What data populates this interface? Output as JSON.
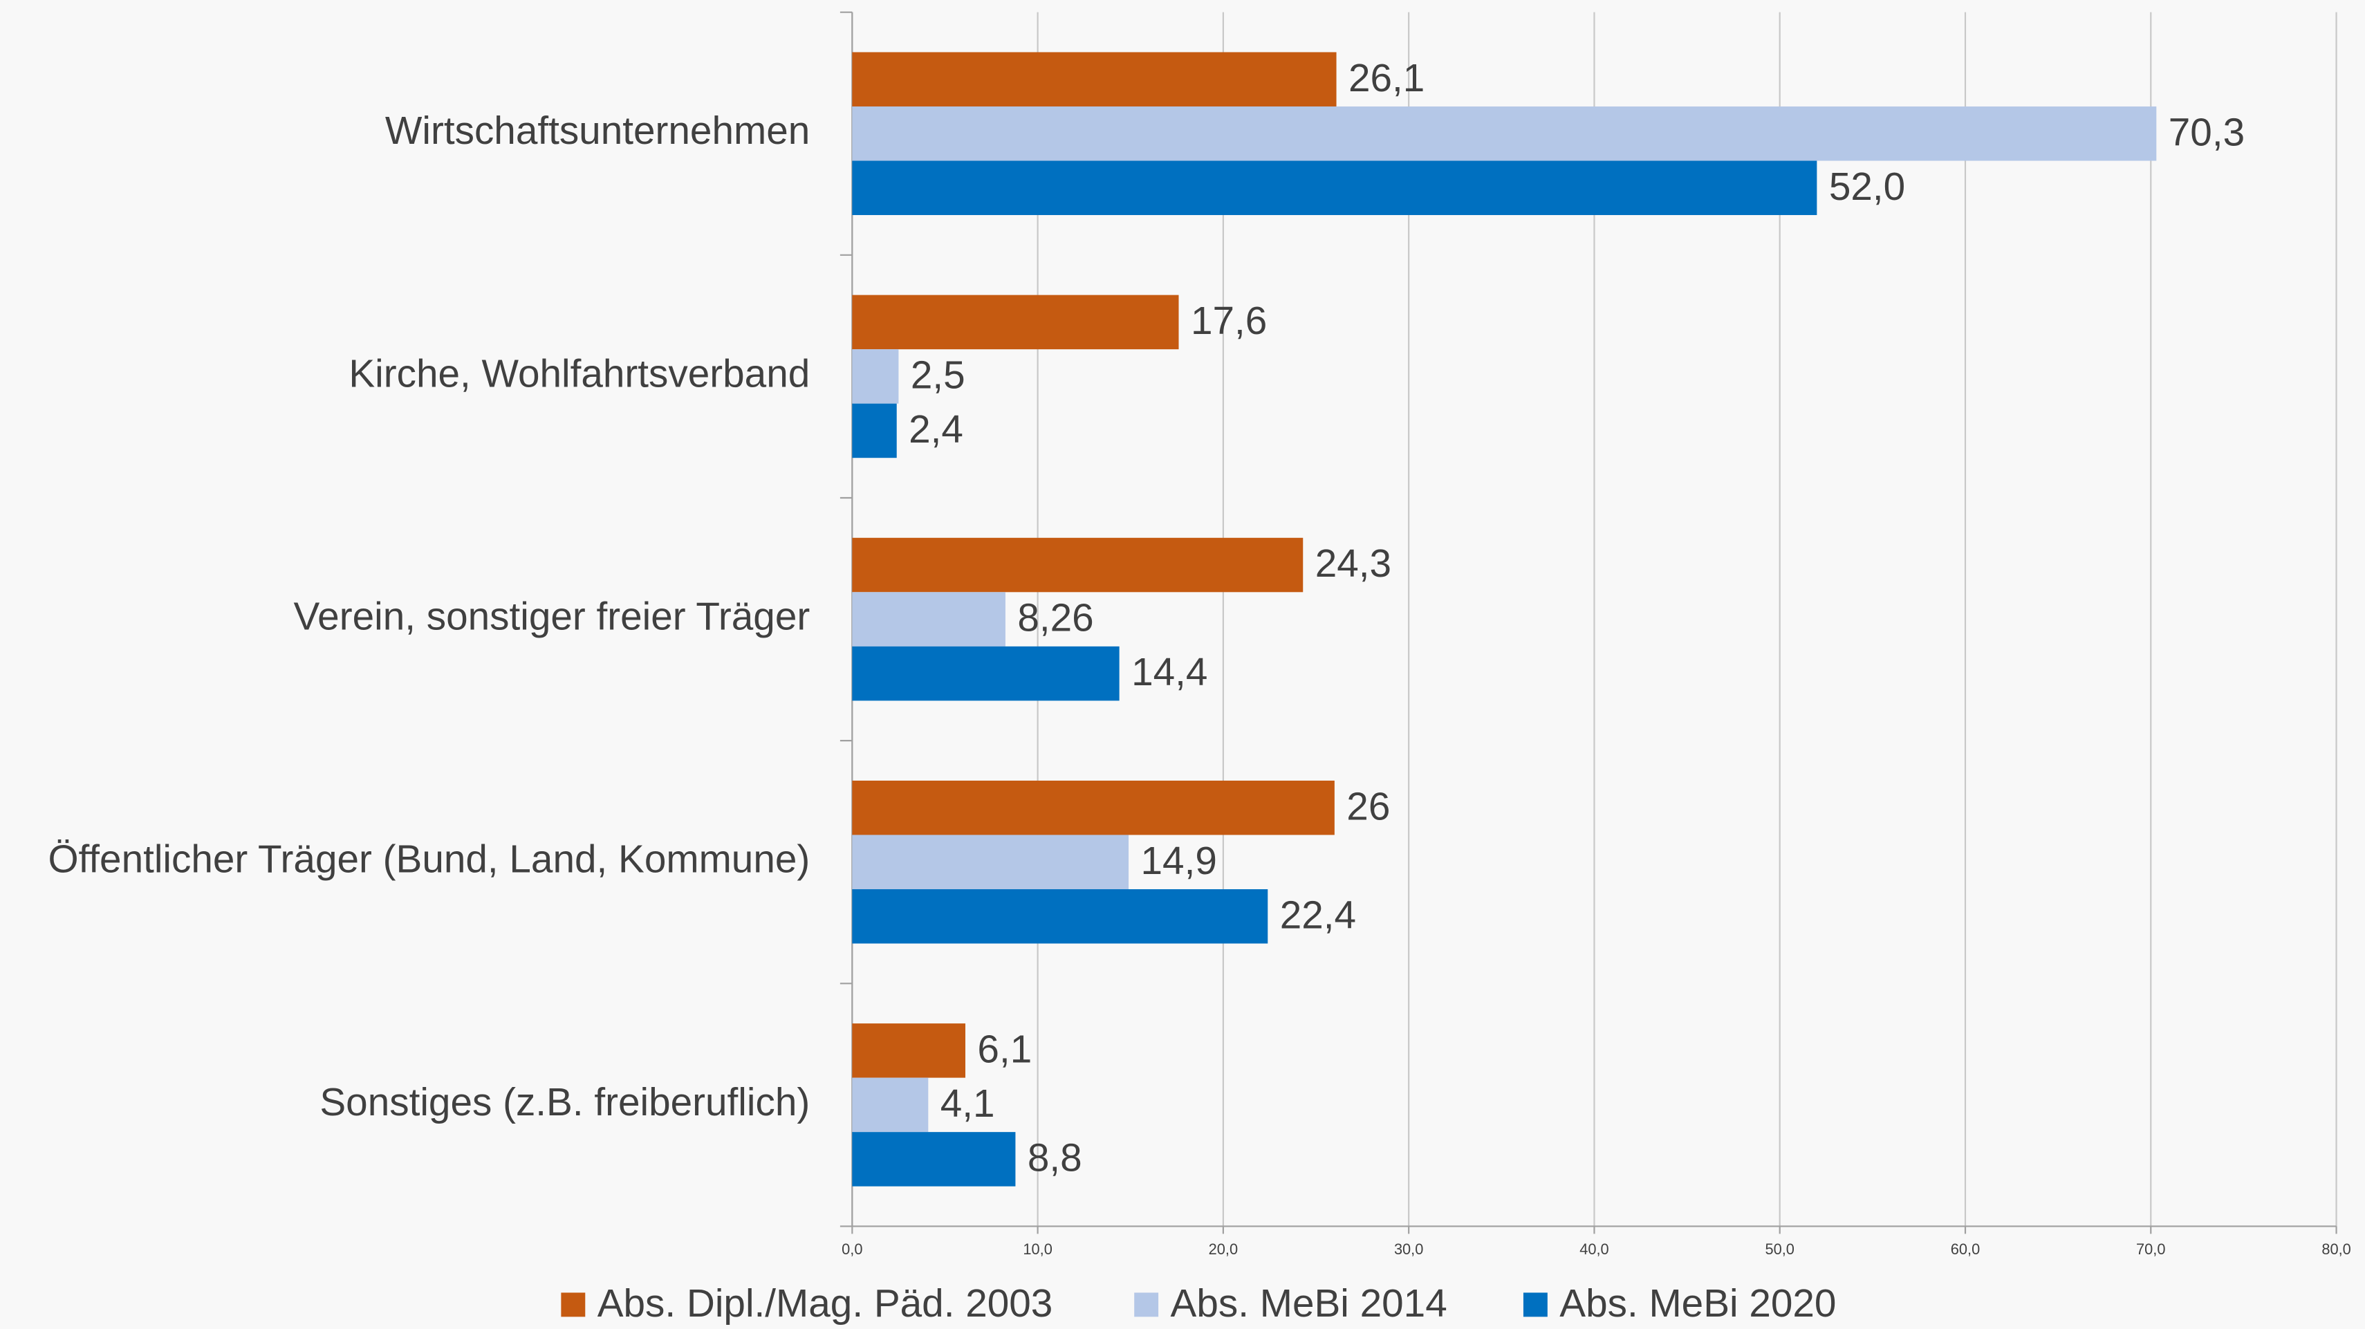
{
  "chart_data": {
    "type": "hbar",
    "categories": [
      "Wirtschaftsunternehmen",
      "Kirche, Wohlfahrtsverband",
      "Verein, sonstiger freier Träger",
      "Öffentlicher Träger (Bund, Land, Kommune)",
      "Sonstiges (z.B. freiberuflich)"
    ],
    "series": [
      {
        "name": "Abs. Dipl./Mag. Päd. 2003",
        "color": "#c55a11",
        "values": [
          26.1,
          17.6,
          24.3,
          26,
          6.1
        ],
        "value_labels": [
          "26,1",
          "17,6",
          "24,3",
          "26",
          "6,1"
        ]
      },
      {
        "name": "Abs. MeBi 2014",
        "color": "#b4c7e7",
        "values": [
          70.3,
          2.5,
          8.26,
          14.9,
          4.1
        ],
        "value_labels": [
          "70,3",
          "2,5",
          "8,26",
          "14,9",
          "4,1"
        ]
      },
      {
        "name": "Abs. MeBi 2020",
        "color": "#0070c0",
        "values": [
          52.0,
          2.4,
          14.4,
          22.4,
          8.8
        ],
        "value_labels": [
          "52,0",
          "2,4",
          "14,4",
          "22,4",
          "8,8"
        ]
      }
    ],
    "xlim": [
      0,
      80
    ],
    "xticks": [
      {
        "value": 0,
        "label": "0,0"
      },
      {
        "value": 10,
        "label": "10,0"
      },
      {
        "value": 20,
        "label": "20,0"
      },
      {
        "value": 30,
        "label": "30,0"
      },
      {
        "value": 40,
        "label": "40,0"
      },
      {
        "value": 50,
        "label": "50,0"
      },
      {
        "value": 60,
        "label": "60,0"
      },
      {
        "value": 70,
        "label": "70,0"
      },
      {
        "value": 80,
        "label": "80,0"
      }
    ],
    "grid": true,
    "legend": "bottom"
  }
}
